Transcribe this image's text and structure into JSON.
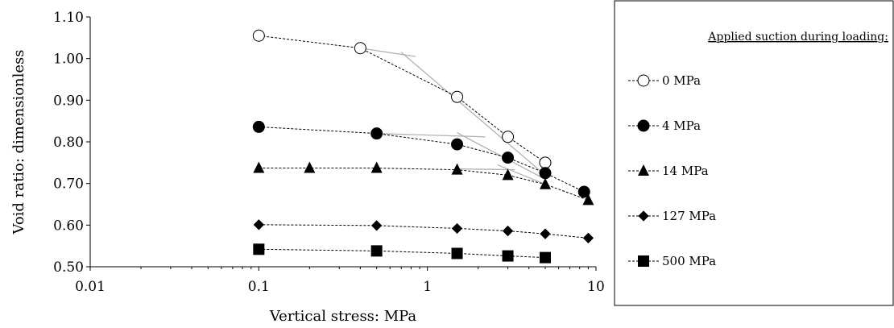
{
  "chart_data": {
    "type": "scatter",
    "xlabel": "Vertical stress: MPa",
    "ylabel": "Void ratio: dimensionless",
    "xscale": "log",
    "xlim": [
      0.01,
      10
    ],
    "ylim": [
      0.5,
      1.1
    ],
    "x_ticks": [
      "0.01",
      "0.1",
      "1",
      "10"
    ],
    "y_ticks": [
      "0.50",
      "0.60",
      "0.70",
      "0.80",
      "0.90",
      "1.00",
      "1.10"
    ],
    "grid": false,
    "legend_title": "Applied suction during loading:",
    "legend_position": "right",
    "series": [
      {
        "name": "0 MPa",
        "marker": "open-circle",
        "color": "#000000",
        "x": [
          0.1,
          0.4,
          1.5,
          3,
          5
        ],
        "y": [
          1.055,
          1.025,
          0.908,
          0.812,
          0.75
        ]
      },
      {
        "name": "4 MPa",
        "marker": "filled-circle",
        "color": "#000000",
        "x": [
          0.1,
          0.5,
          1.5,
          3,
          5,
          8.5
        ],
        "y": [
          0.836,
          0.82,
          0.794,
          0.762,
          0.725,
          0.68
        ]
      },
      {
        "name": "14 MPa",
        "marker": "triangle",
        "color": "#000000",
        "x": [
          0.1,
          0.2,
          0.5,
          1.5,
          3,
          5,
          9
        ],
        "y": [
          0.737,
          0.737,
          0.737,
          0.733,
          0.72,
          0.698,
          0.66
        ]
      },
      {
        "name": "127 MPa",
        "marker": "diamond",
        "color": "#000000",
        "x": [
          0.1,
          0.5,
          1.5,
          3,
          5,
          9
        ],
        "y": [
          0.601,
          0.599,
          0.592,
          0.586,
          0.579,
          0.569
        ]
      },
      {
        "name": "500 MPa",
        "marker": "square",
        "color": "#000000",
        "x": [
          0.1,
          0.5,
          1.5,
          3,
          5
        ],
        "y": [
          0.542,
          0.538,
          0.532,
          0.526,
          0.522
        ]
      }
    ],
    "construction_lines": {
      "color": "#b3b3b3",
      "segments": [
        {
          "x": [
            0.4,
            0.85
          ],
          "y": [
            1.025,
            1.005
          ]
        },
        {
          "x": [
            0.7,
            5
          ],
          "y": [
            1.015,
            0.72
          ]
        },
        {
          "x": [
            0.5,
            2.2
          ],
          "y": [
            0.82,
            0.812
          ]
        },
        {
          "x": [
            1.5,
            5
          ],
          "y": [
            0.822,
            0.71
          ]
        },
        {
          "x": [
            1.5,
            3.3
          ],
          "y": [
            0.735,
            0.733
          ]
        },
        {
          "x": [
            2.6,
            5
          ],
          "y": [
            0.745,
            0.698
          ]
        }
      ]
    }
  }
}
